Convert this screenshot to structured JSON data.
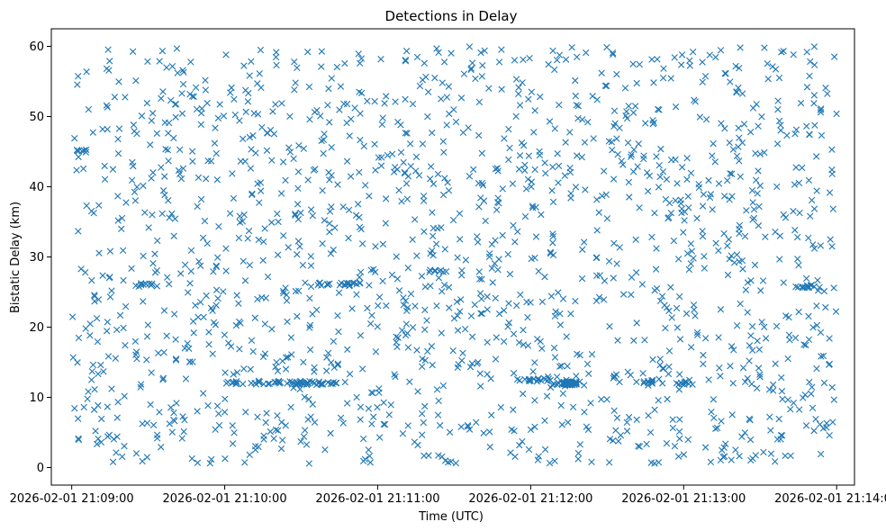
{
  "chart_data": {
    "type": "scatter",
    "title": "Detections in Delay",
    "xlabel": "Time (UTC)",
    "ylabel": "Bistatic Delay (km)",
    "marker": "x",
    "color": "#1f77b4",
    "grid": false,
    "legend": "none",
    "xlim": [
      "2026-02-01 21:08:52",
      "2026-02-01 21:14:07"
    ],
    "ylim": [
      -2.5,
      62.5
    ],
    "x_ticks": [
      "2026-02-01 21:09:00",
      "2026-02-01 21:10:00",
      "2026-02-01 21:11:00",
      "2026-02-01 21:12:00",
      "2026-02-01 21:13:00",
      "2026-02-01 21:14:00"
    ],
    "y_ticks": [
      0,
      10,
      20,
      30,
      40,
      50,
      60
    ],
    "point_count": 1800,
    "time_range": [
      "2026-02-01 21:09:00",
      "2026-02-01 21:14:00"
    ],
    "delay_range": [
      0.5,
      60
    ],
    "tracks": [
      {
        "start": "2026-02-01 21:10:00",
        "end": "2026-02-01 21:10:40",
        "delay": 12.1
      },
      {
        "start": "2026-02-01 21:10:27",
        "end": "2026-02-01 21:10:44",
        "delay": 12.0
      },
      {
        "start": "2026-02-01 21:11:53",
        "end": "2026-02-01 21:12:08",
        "delay": 12.5
      },
      {
        "start": "2026-02-01 21:12:08",
        "end": "2026-02-01 21:12:20",
        "delay": 12.0
      },
      {
        "start": "2026-02-01 21:12:40",
        "end": "2026-02-01 21:12:49",
        "delay": 12.2
      },
      {
        "start": "2026-02-01 21:12:57",
        "end": "2026-02-01 21:13:05",
        "delay": 12.0
      },
      {
        "start": "2026-02-01 21:10:36",
        "end": "2026-02-01 21:10:56",
        "delay": 26.1
      },
      {
        "start": "2026-02-01 21:09:25",
        "end": "2026-02-01 21:09:35",
        "delay": 26.0
      },
      {
        "start": "2026-02-01 21:11:20",
        "end": "2026-02-01 21:11:27",
        "delay": 28.0
      },
      {
        "start": "2026-02-01 21:09:02",
        "end": "2026-02-01 21:09:08",
        "delay": 45.1
      },
      {
        "start": "2026-02-01 21:13:44",
        "end": "2026-02-01 21:13:54",
        "delay": 25.8
      },
      {
        "start": "2026-02-01 21:12:13",
        "end": "2026-02-01 21:12:18",
        "delay": 12.0
      }
    ]
  }
}
